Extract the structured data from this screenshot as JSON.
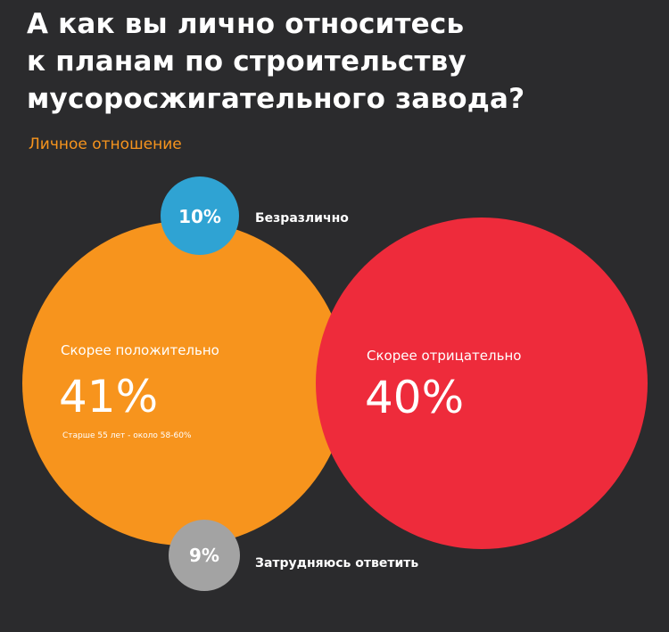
{
  "header": {
    "title_lines": [
      "А как вы лично относитесь",
      "к планам по строительству",
      "мусоросжигательного завода?"
    ],
    "subtitle": "Личное отношение"
  },
  "colors": {
    "background": "#2b2b2d",
    "title": "#ffffff",
    "subtitle": "#f7941d",
    "positive": "#f7941d",
    "negative": "#ee2b3b",
    "indifferent": "#2fa3d3",
    "undecided": "#a3a3a3"
  },
  "chart_data": {
    "type": "bubble",
    "title": "А как вы лично относитесь к планам по строительству мусоросжигательного завода?",
    "subtitle": "Личное отношение",
    "unit": "%",
    "series": [
      {
        "key": "positive",
        "name": "Скорее положительно",
        "value": 41,
        "value_label": "41%",
        "note": "Старше 55 лет - около 58-60%",
        "color": "#f7941d"
      },
      {
        "key": "negative",
        "name": "Скорее отрицательно",
        "value": 40,
        "value_label": "40%",
        "color": "#ee2b3b"
      },
      {
        "key": "indifferent",
        "name": "Безразлично",
        "value": 10,
        "value_label": "10%",
        "color": "#2fa3d3"
      },
      {
        "key": "undecided",
        "name": "Затрудняюсь ответить",
        "value": 9,
        "value_label": "9%",
        "color": "#a3a3a3"
      }
    ]
  }
}
